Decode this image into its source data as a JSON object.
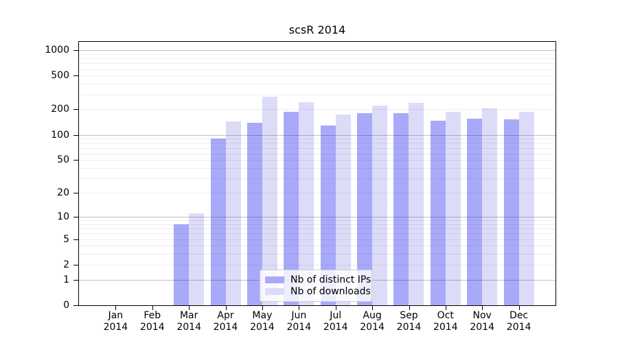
{
  "chart_data": {
    "type": "bar",
    "title": "scsR 2014",
    "categories": [
      "Jan 2014",
      "Feb 2014",
      "Mar 2014",
      "Apr 2014",
      "May 2014",
      "Jun 2014",
      "Jul 2014",
      "Aug 2014",
      "Sep 2014",
      "Oct 2014",
      "Nov 2014",
      "Dec 2014"
    ],
    "series": [
      {
        "name": "Nb of distinct IPs",
        "color": "#a9a9f9",
        "values": [
          0,
          0,
          8,
          90,
          140,
          186,
          130,
          182,
          180,
          146,
          155,
          152
        ]
      },
      {
        "name": "Nb of downloads",
        "color": "#dcdcf9",
        "values": [
          0,
          0,
          11,
          144,
          282,
          245,
          173,
          222,
          240,
          187,
          205,
          189
        ]
      }
    ],
    "xlabel": "",
    "ylabel": "",
    "y_scale": "log1p",
    "ylim": [
      0,
      1250
    ],
    "y_ticks": [
      0,
      1,
      2,
      5,
      10,
      20,
      50,
      100,
      200,
      500,
      1000
    ],
    "grid": {
      "orientation": "horizontal",
      "major_at": [
        1,
        10,
        100,
        1000
      ],
      "minor": "2-9 per log decade",
      "drawn_over_bars": true
    },
    "legend": {
      "position": "bottom-center",
      "entries": [
        "Nb of distinct IPs",
        "Nb of downloads"
      ]
    }
  },
  "colors": {
    "bar_distinct_ips": "#a9a9f9",
    "bar_downloads": "#dcdcf9",
    "major_grid": "rgba(0,0,0,0.24)",
    "minor_grid": "rgba(0,0,0,0.07)",
    "spine": "#000000",
    "background": "#ffffff"
  }
}
